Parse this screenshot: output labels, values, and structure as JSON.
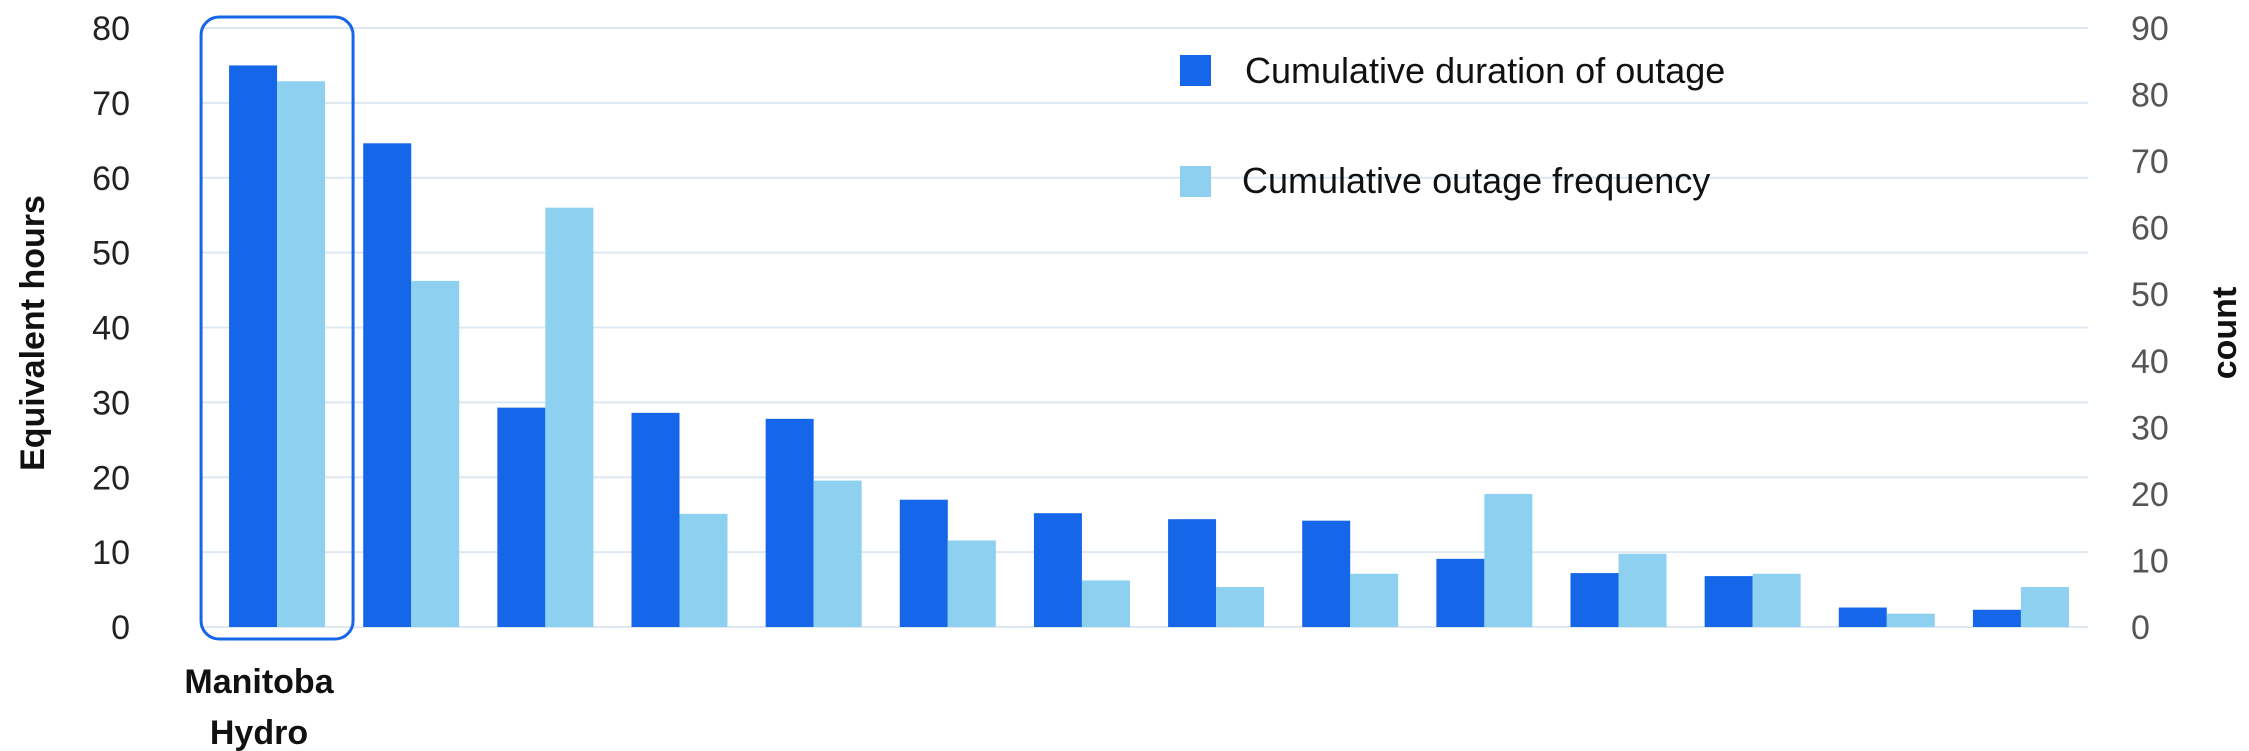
{
  "chart_data": {
    "type": "bar",
    "categories": [
      "Manitoba Hydro",
      "",
      "",
      "",
      "",
      "",
      "",
      "",
      "",
      "",
      "",
      "",
      "",
      ""
    ],
    "category_label_lines": [
      "Manitoba",
      "Hydro"
    ],
    "series": [
      {
        "name": "Cumulative duration of outage",
        "axis": "left",
        "color": "#1566e8",
        "values": [
          75,
          64.6,
          29.3,
          28.6,
          27.8,
          17,
          15.2,
          14.4,
          14.2,
          9.1,
          7.2,
          6.8,
          2.6,
          2.3
        ]
      },
      {
        "name": "Cumulative outage frequency",
        "axis": "right",
        "color": "#8dd0ef",
        "values": [
          82,
          52,
          63,
          17,
          22,
          13,
          7,
          6,
          8,
          20,
          11,
          8,
          2,
          6
        ]
      }
    ],
    "ylabel": "Equivalent hours",
    "ylabel_right": "count",
    "ylim": [
      0,
      80
    ],
    "ylim_right": [
      0,
      90
    ],
    "yticks": [
      "0",
      "10",
      "20",
      "30",
      "40",
      "50",
      "60",
      "70",
      "80"
    ],
    "yticks_right": [
      "0",
      "10",
      "20",
      "30",
      "40",
      "50",
      "60",
      "70",
      "80",
      "90"
    ],
    "grid": true,
    "legend_position": "top-right",
    "highlight_category": "Manitoba Hydro",
    "highlight_color": "#1566e8",
    "grid_color": "#dde8f2"
  }
}
